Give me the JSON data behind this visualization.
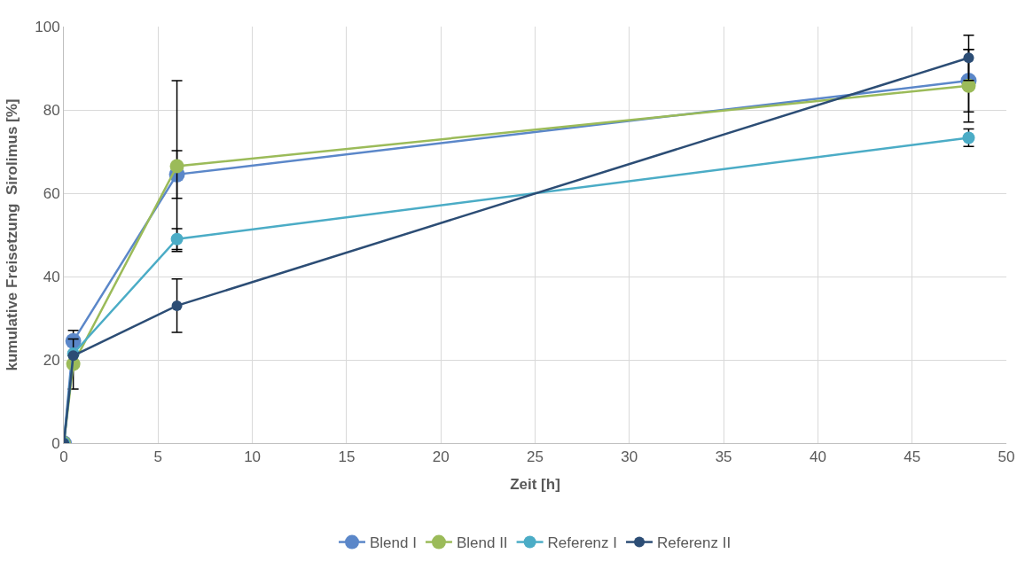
{
  "chart_data": {
    "type": "line",
    "xlabel": "Zeit [h]",
    "ylabel": "kumulative Freisetzung  Sirolimus [%]",
    "x": [
      0,
      0.5,
      6,
      48
    ],
    "xlim": [
      0,
      50
    ],
    "xticks": [
      0,
      5,
      10,
      15,
      20,
      25,
      30,
      35,
      40,
      45,
      50
    ],
    "ylim": [
      0,
      100
    ],
    "yticks": [
      0,
      20,
      40,
      60,
      80,
      100
    ],
    "grid": true,
    "legend": "bottom",
    "marker": "circle",
    "line_style": "solid",
    "series": [
      {
        "name": "Blend I",
        "color": "#5b87c9",
        "values": [
          0,
          24.5,
          64.5,
          87
        ],
        "errors": [
          null,
          2.6,
          5.7,
          7.5
        ]
      },
      {
        "name": "Blend II",
        "color": "#9bbb59",
        "values": [
          0,
          19,
          66.5,
          85.8
        ],
        "errors": [
          null,
          6,
          20.5,
          8.7
        ]
      },
      {
        "name": "Referenz I",
        "color": "#4bacc6",
        "values": [
          0,
          21.5,
          49,
          73.3
        ],
        "errors": [
          null,
          null,
          2.5,
          2.1
        ]
      },
      {
        "name": "Referenz II",
        "color": "#2c4d75",
        "values": [
          0,
          21,
          33,
          92.5
        ],
        "errors": [
          null,
          null,
          6.4,
          5.4
        ]
      }
    ]
  }
}
